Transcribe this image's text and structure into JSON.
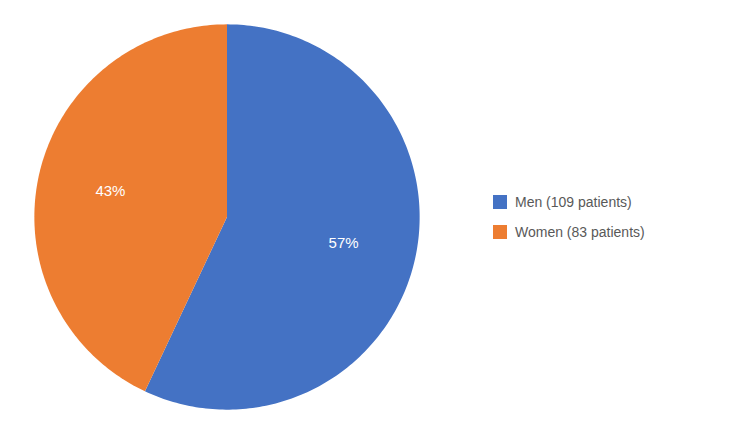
{
  "chart_data": {
    "type": "pie",
    "categories": [
      "Men (109 patients)",
      "Women (83 patients)"
    ],
    "values": [
      57,
      43
    ],
    "value_labels": [
      "57%",
      "43%"
    ],
    "colors": [
      "#4472C4",
      "#ED7D31"
    ],
    "data_labels": true,
    "legend": "right"
  }
}
